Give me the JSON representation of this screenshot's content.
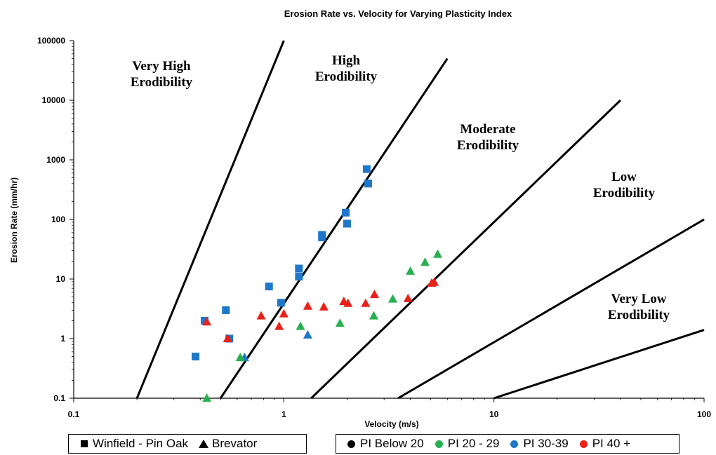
{
  "chart_data": {
    "type": "scatter",
    "title": "Erosion Rate vs. Velocity for Varying Plasticity Index",
    "xlabel": "Velocity (m/s)",
    "ylabel": "Erosion Rate (mm/hr)",
    "x_scale": "log",
    "y_scale": "log",
    "xlim": [
      0.1,
      100
    ],
    "ylim": [
      0.1,
      100000
    ],
    "x_ticks": [
      "0.1",
      "1",
      "10",
      "100"
    ],
    "y_ticks": [
      "0.1",
      "1",
      "10",
      "100",
      "1000",
      "10000",
      "100000"
    ],
    "grid": false,
    "boundary_lines": [
      {
        "points": [
          [
            0.2,
            0.1
          ],
          [
            1.0,
            100000
          ]
        ]
      },
      {
        "points": [
          [
            0.5,
            0.1
          ],
          [
            6.0,
            50000
          ]
        ]
      },
      {
        "points": [
          [
            1.35,
            0.1
          ],
          [
            40,
            10000
          ]
        ]
      },
      {
        "points": [
          [
            3.5,
            0.1
          ],
          [
            100,
            100
          ]
        ]
      },
      {
        "points": [
          [
            10,
            0.1
          ],
          [
            100,
            1.4
          ]
        ]
      }
    ],
    "region_labels": [
      {
        "lines": [
          "Very High",
          "Erodibility"
        ]
      },
      {
        "lines": [
          "High",
          "Erodibility"
        ]
      },
      {
        "lines": [
          "Moderate",
          "Erodibility"
        ]
      },
      {
        "lines": [
          "Low",
          "Erodibility"
        ]
      },
      {
        "lines": [
          "Very Low",
          "Erodibility"
        ]
      }
    ],
    "series": [
      {
        "name": "PI 30-39",
        "source": "Winfield - Pin Oak",
        "marker": "square",
        "color": "#1f77c9",
        "points": [
          [
            0.38,
            0.5
          ],
          [
            0.42,
            2
          ],
          [
            0.53,
            3
          ],
          [
            0.55,
            1
          ],
          [
            0.85,
            7.5
          ],
          [
            0.97,
            4
          ],
          [
            1.18,
            15
          ],
          [
            1.18,
            11
          ],
          [
            1.52,
            55
          ],
          [
            1.52,
            50
          ],
          [
            1.97,
            130
          ],
          [
            2.0,
            85
          ],
          [
            2.48,
            700
          ],
          [
            2.52,
            400
          ]
        ]
      },
      {
        "name": "PI 30-39",
        "source": "Brevator",
        "marker": "triangle",
        "color": "#1f77c9",
        "points": [
          [
            0.65,
            0.48
          ],
          [
            1.3,
            1.15
          ]
        ]
      },
      {
        "name": "PI 20 - 29",
        "source": "Brevator",
        "marker": "triangle",
        "color": "#27b04f",
        "points": [
          [
            0.43,
            0.1
          ],
          [
            0.62,
            0.48
          ],
          [
            1.2,
            1.6
          ],
          [
            1.85,
            1.8
          ],
          [
            2.68,
            2.4
          ],
          [
            3.3,
            4.6
          ],
          [
            4.0,
            13.5
          ],
          [
            4.7,
            19
          ],
          [
            5.4,
            26
          ]
        ]
      },
      {
        "name": "PI 40 +",
        "source": "Brevator",
        "marker": "triangle",
        "color": "#e8221a",
        "points": [
          [
            0.43,
            1.9
          ],
          [
            0.54,
            1.0
          ],
          [
            0.78,
            2.4
          ],
          [
            0.95,
            1.6
          ],
          [
            1.0,
            2.6
          ],
          [
            1.3,
            3.5
          ],
          [
            1.55,
            3.4
          ],
          [
            1.93,
            4.2
          ],
          [
            2.02,
            3.9
          ],
          [
            2.45,
            3.9
          ],
          [
            2.7,
            5.5
          ],
          [
            3.9,
            4.7
          ],
          [
            5.05,
            8.5
          ],
          [
            5.2,
            8.8
          ]
        ]
      }
    ]
  },
  "legend": {
    "marker_items": [
      {
        "label": "Winfield - Pin Oak",
        "symbol": "square"
      },
      {
        "label": "Brevator",
        "symbol": "triangle"
      }
    ],
    "color_items": [
      {
        "label": "PI Below 20",
        "color": "#000000"
      },
      {
        "label": "PI 20 - 29",
        "color": "#27b04f"
      },
      {
        "label": "PI 30-39",
        "color": "#1f77c9"
      },
      {
        "label": "PI 40 +",
        "color": "#e8221a"
      }
    ]
  }
}
